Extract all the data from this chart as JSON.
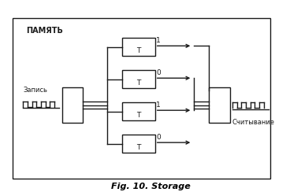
{
  "title": "Fig. 10. Storage",
  "main_label": "ПАМЯТЬ",
  "write_label": "Запись",
  "read_label": "Считывание",
  "bit_labels": [
    "1",
    "0",
    "1",
    "0"
  ],
  "line_color": "#1a1a1a",
  "fig_width": 3.82,
  "fig_height": 2.44,
  "dpi": 100
}
